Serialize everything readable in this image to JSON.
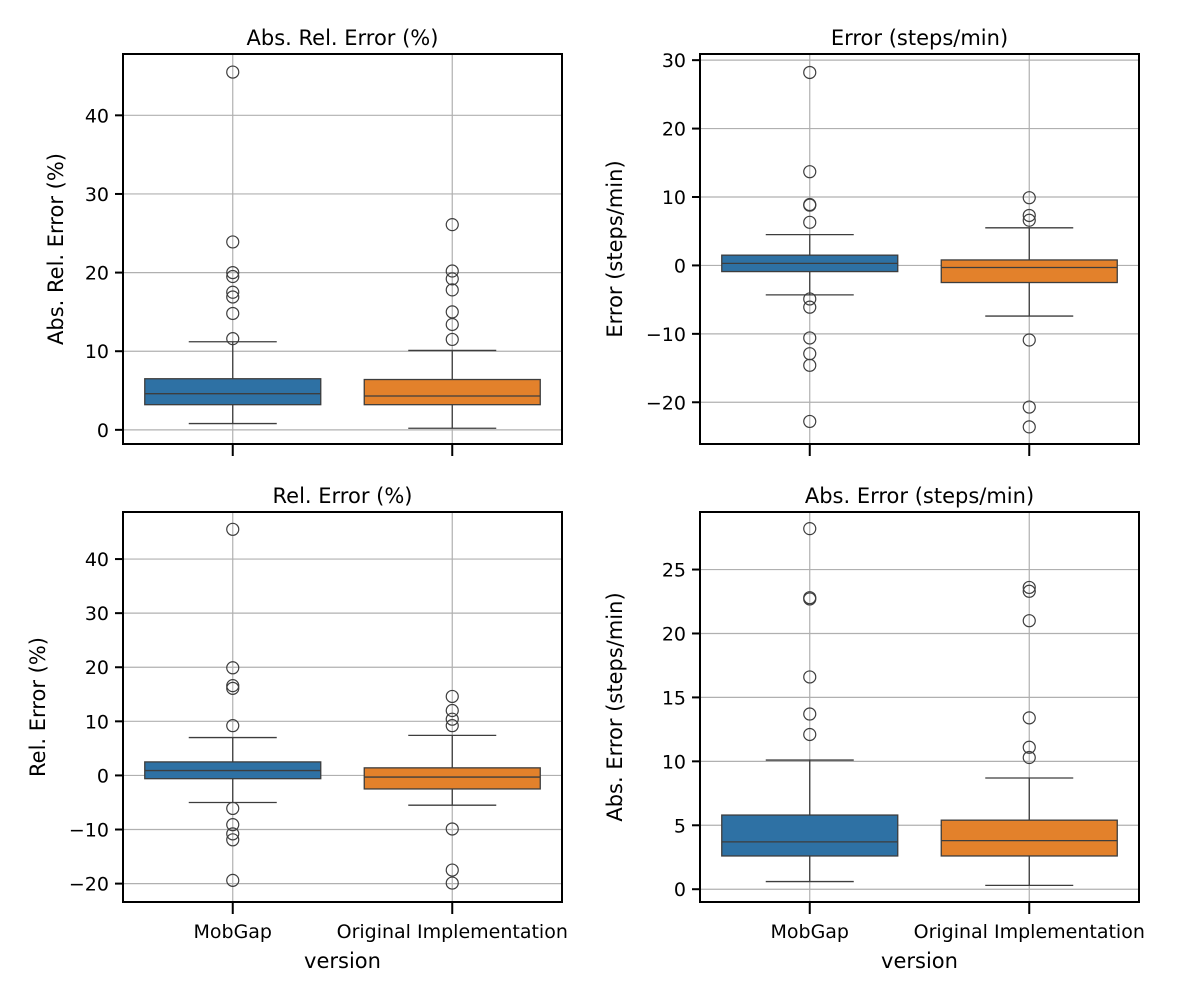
{
  "chart_data": [
    {
      "type": "box",
      "title": "Abs. Rel. Error (%)",
      "xlabel": "",
      "ylabel": "Abs. Rel. Error (%)",
      "ylim": [
        -1.8,
        47.8
      ],
      "yticks": [
        0,
        10,
        20,
        30,
        40
      ],
      "ytick_labels": [
        "0",
        "10",
        "20",
        "30",
        "40"
      ],
      "categories": [
        "MobGap",
        "Original Implementation"
      ],
      "show_xtick_labels": false,
      "grid": true,
      "series": [
        {
          "category": "MobGap",
          "color": "#2e71a4",
          "whisker_low": 0.8,
          "q1": 3.2,
          "median": 4.6,
          "q3": 6.5,
          "whisker_high": 11.2,
          "outliers": [
            45.5,
            23.9,
            20.0,
            19.5,
            17.5,
            16.9,
            14.8,
            11.6
          ]
        },
        {
          "category": "Original Implementation",
          "color": "#e3812b",
          "whisker_low": 0.2,
          "q1": 3.2,
          "median": 4.3,
          "q3": 6.4,
          "whisker_high": 10.1,
          "outliers": [
            26.1,
            20.2,
            19.2,
            17.8,
            15.0,
            13.4,
            11.5
          ]
        }
      ]
    },
    {
      "type": "box",
      "title": "Error (steps/min)",
      "xlabel": "",
      "ylabel": "Error (steps/min)",
      "ylim": [
        -26.1,
        30.9
      ],
      "yticks": [
        -20,
        -10,
        0,
        10,
        20,
        30
      ],
      "ytick_labels": [
        "−20",
        "−10",
        "0",
        "10",
        "20",
        "30"
      ],
      "categories": [
        "MobGap",
        "Original Implementation"
      ],
      "show_xtick_labels": false,
      "grid": true,
      "series": [
        {
          "category": "MobGap",
          "color": "#2e71a4",
          "whisker_low": -4.3,
          "q1": -0.9,
          "median": 0.3,
          "q3": 1.5,
          "whisker_high": 4.5,
          "outliers": [
            28.2,
            13.7,
            8.9,
            8.8,
            6.3,
            -4.9,
            -6.1,
            -10.6,
            -12.9,
            -14.6,
            -22.8
          ]
        },
        {
          "category": "Original Implementation",
          "color": "#e3812b",
          "whisker_low": -7.4,
          "q1": -2.5,
          "median": -0.3,
          "q3": 0.8,
          "whisker_high": 5.5,
          "outliers": [
            9.9,
            7.3,
            6.6,
            -10.9,
            -20.7,
            -23.6
          ]
        }
      ]
    },
    {
      "type": "box",
      "title": "Rel. Error (%)",
      "xlabel": "version",
      "ylabel": "Rel. Error (%)",
      "ylim": [
        -23.4,
        48.7
      ],
      "yticks": [
        -20,
        -10,
        0,
        10,
        20,
        30,
        40
      ],
      "ytick_labels": [
        "−20",
        "−10",
        "0",
        "10",
        "20",
        "30",
        "40"
      ],
      "categories": [
        "MobGap",
        "Original Implementation"
      ],
      "show_xtick_labels": true,
      "grid": true,
      "series": [
        {
          "category": "MobGap",
          "color": "#2e71a4",
          "whisker_low": -5.0,
          "q1": -0.6,
          "median": 0.9,
          "q3": 2.5,
          "whisker_high": 7.0,
          "outliers": [
            45.5,
            19.9,
            16.6,
            16.1,
            9.2,
            -6.1,
            -9.1,
            -10.8,
            -11.9,
            -19.4
          ]
        },
        {
          "category": "Original Implementation",
          "color": "#e3812b",
          "whisker_low": -5.5,
          "q1": -2.5,
          "median": -0.3,
          "q3": 1.4,
          "whisker_high": 7.4,
          "outliers": [
            14.6,
            12.0,
            10.4,
            9.2,
            -9.9,
            -17.5,
            -19.9
          ]
        }
      ]
    },
    {
      "type": "box",
      "title": "Abs. Error (steps/min)",
      "xlabel": "version",
      "ylabel": "Abs. Error (steps/min)",
      "ylim": [
        -1.0,
        29.5
      ],
      "yticks": [
        0,
        5,
        10,
        15,
        20,
        25
      ],
      "ytick_labels": [
        "0",
        "5",
        "10",
        "15",
        "20",
        "25"
      ],
      "categories": [
        "MobGap",
        "Original Implementation"
      ],
      "show_xtick_labels": true,
      "grid": true,
      "series": [
        {
          "category": "MobGap",
          "color": "#2e71a4",
          "whisker_low": 0.6,
          "q1": 2.6,
          "median": 3.7,
          "q3": 5.8,
          "whisker_high": 10.1,
          "outliers": [
            28.2,
            22.8,
            22.7,
            16.6,
            13.7,
            12.1
          ]
        },
        {
          "category": "Original Implementation",
          "color": "#e3812b",
          "whisker_low": 0.3,
          "q1": 2.6,
          "median": 3.8,
          "q3": 5.4,
          "whisker_high": 8.7,
          "outliers": [
            23.6,
            23.3,
            21.0,
            13.4,
            11.1,
            10.3
          ]
        }
      ]
    }
  ]
}
